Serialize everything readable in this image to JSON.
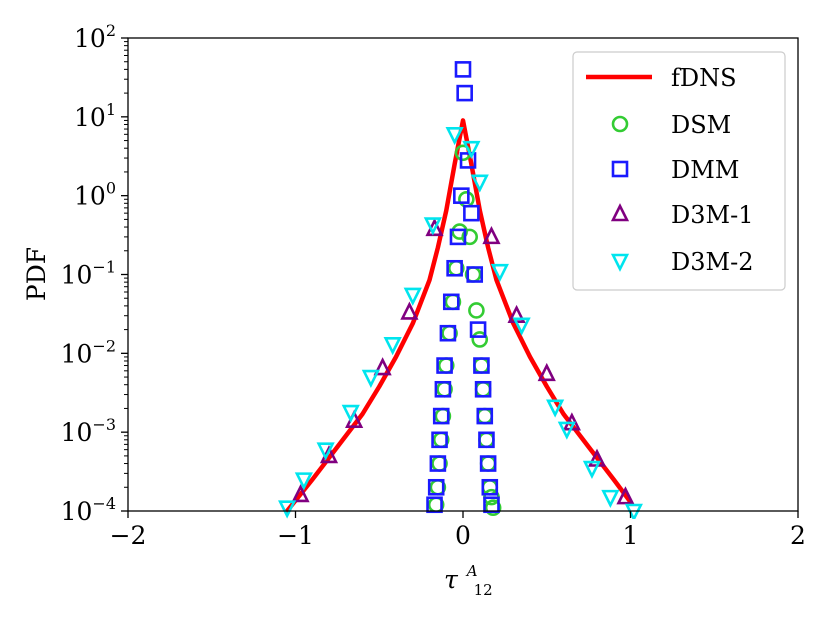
{
  "chart_data": {
    "type": "line",
    "title": "",
    "xlabel": "τ",
    "xlabel_sup": "A",
    "xlabel_sub": "12",
    "ylabel": "PDF",
    "xlim": [
      -2,
      2
    ],
    "ylim_log10": [
      -4,
      2
    ],
    "yscale": "log",
    "grid": false,
    "legend_position": "top-right",
    "x_ticks": [
      {
        "value": -2,
        "label": "−2"
      },
      {
        "value": -1,
        "label": "−1"
      },
      {
        "value": 0,
        "label": "0"
      },
      {
        "value": 1,
        "label": "1"
      },
      {
        "value": 2,
        "label": "2"
      }
    ],
    "y_ticks": [
      {
        "exp": 2,
        "base": "10",
        "sup": "2"
      },
      {
        "exp": 1,
        "base": "10",
        "sup": "1"
      },
      {
        "exp": 0,
        "base": "10",
        "sup": "0"
      },
      {
        "exp": -1,
        "base": "10",
        "sup": "−1"
      },
      {
        "exp": -2,
        "base": "10",
        "sup": "−2"
      },
      {
        "exp": -3,
        "base": "10",
        "sup": "−3"
      },
      {
        "exp": -4,
        "base": "10",
        "sup": "−4"
      }
    ],
    "series": [
      {
        "name": "fDNS",
        "kind": "line",
        "color": "#ff0000",
        "x": [
          -1.05,
          -0.9,
          -0.75,
          -0.6,
          -0.5,
          -0.4,
          -0.3,
          -0.2,
          -0.15,
          -0.1,
          -0.05,
          0,
          0.05,
          0.1,
          0.15,
          0.2,
          0.3,
          0.4,
          0.5,
          0.6,
          0.75,
          0.9,
          1.0
        ],
        "y": [
          0.0001,
          0.00025,
          0.00065,
          0.0017,
          0.0038,
          0.009,
          0.024,
          0.085,
          0.22,
          0.65,
          2.5,
          9.0,
          2.5,
          0.65,
          0.22,
          0.085,
          0.024,
          0.009,
          0.0038,
          0.0017,
          0.00065,
          0.00025,
          0.00013
        ]
      },
      {
        "name": "DSM",
        "kind": "marker",
        "marker": "circle",
        "color": "#33cc33",
        "x": [
          -0.16,
          -0.15,
          -0.14,
          -0.13,
          -0.12,
          -0.11,
          -0.1,
          -0.08,
          -0.06,
          -0.04,
          -0.02,
          0.0,
          0.02,
          0.04,
          0.06,
          0.08,
          0.1,
          0.11,
          0.12,
          0.13,
          0.14,
          0.15,
          0.16,
          0.17,
          0.18
        ],
        "y": [
          0.00012,
          0.0002,
          0.0004,
          0.0008,
          0.0016,
          0.0035,
          0.007,
          0.018,
          0.045,
          0.12,
          0.35,
          3.5,
          0.9,
          0.3,
          0.1,
          0.035,
          0.015,
          0.007,
          0.0035,
          0.0016,
          0.0008,
          0.0004,
          0.0002,
          0.00015,
          0.00011
        ]
      },
      {
        "name": "DMM",
        "kind": "marker",
        "marker": "square",
        "color": "#1a1aff",
        "x": [
          -0.17,
          -0.16,
          -0.15,
          -0.14,
          -0.13,
          -0.12,
          -0.11,
          -0.09,
          -0.07,
          -0.05,
          -0.03,
          -0.01,
          0.0,
          0.01,
          0.03,
          0.05,
          0.07,
          0.09,
          0.11,
          0.12,
          0.13,
          0.14,
          0.15,
          0.16,
          0.17
        ],
        "y": [
          0.00012,
          0.0002,
          0.0004,
          0.0008,
          0.0016,
          0.0035,
          0.007,
          0.018,
          0.045,
          0.12,
          0.3,
          1.0,
          40,
          20,
          2.8,
          0.6,
          0.1,
          0.02,
          0.007,
          0.0035,
          0.0016,
          0.0008,
          0.0004,
          0.0002,
          0.00012
        ]
      },
      {
        "name": "D3M-1",
        "kind": "marker",
        "marker": "triangle-up",
        "color": "#800080",
        "x": [
          -0.97,
          -0.8,
          -0.65,
          -0.48,
          -0.32,
          -0.17,
          0.17,
          0.32,
          0.5,
          0.65,
          0.8,
          0.97
        ],
        "y": [
          0.00016,
          0.0005,
          0.0014,
          0.0065,
          0.033,
          0.38,
          0.3,
          0.03,
          0.0055,
          0.0013,
          0.00045,
          0.00015
        ]
      },
      {
        "name": "D3M-2",
        "kind": "marker",
        "marker": "triangle-down",
        "color": "#00e5ee",
        "x": [
          -1.05,
          -0.95,
          -0.82,
          -0.67,
          -0.55,
          -0.42,
          -0.3,
          -0.18,
          -0.05,
          0.05,
          0.1,
          0.22,
          0.35,
          0.55,
          0.62,
          0.77,
          0.88,
          1.02
        ],
        "y": [
          0.00011,
          0.00025,
          0.0006,
          0.0018,
          0.005,
          0.013,
          0.055,
          0.43,
          6.0,
          4.0,
          1.5,
          0.11,
          0.023,
          0.0021,
          0.0011,
          0.00035,
          0.00015,
          0.0001
        ]
      }
    ]
  }
}
